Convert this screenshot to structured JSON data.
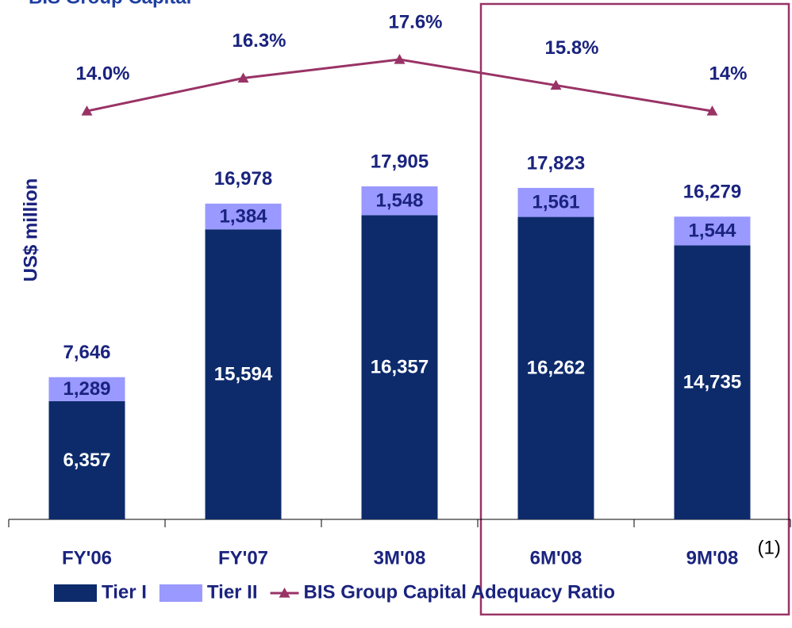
{
  "chart_data": {
    "type": "bar",
    "title": "BIS Group Capital",
    "y_label": "US$ million",
    "categories": [
      "FY'06",
      "FY'07",
      "3M'08",
      "6M'08",
      "9M'08"
    ],
    "category_note": {
      "index": 4,
      "text": "(1)"
    },
    "stacked": true,
    "ylim": [
      0,
      27500
    ],
    "y2lim": [
      -14.5,
      21.2
    ],
    "series": [
      {
        "name": "Tier I",
        "color": "#0d2b6b",
        "values": [
          6357,
          15594,
          16357,
          16262,
          14735
        ],
        "value_labels": [
          "6,357",
          "15,594",
          "16,357",
          "16,262",
          "14,735"
        ]
      },
      {
        "name": "Tier II",
        "color": "#9999ff",
        "values": [
          1289,
          1384,
          1548,
          1561,
          1544
        ],
        "value_labels": [
          "1,289",
          "1,384",
          "1,548",
          "1,561",
          "1,544"
        ]
      },
      {
        "name": "BIS Group Capital Adequacy Ratio",
        "type": "line",
        "axis": "y2",
        "color": "#993366",
        "values": [
          14.0,
          16.3,
          17.6,
          15.8,
          14
        ],
        "value_labels": [
          "14.0%",
          "16.3%",
          "17.6%",
          "15.8%",
          "14%"
        ]
      }
    ],
    "totals": {
      "values": [
        7646,
        16978,
        17905,
        17823,
        16279
      ],
      "value_labels": [
        "7,646",
        "16,978",
        "17,905",
        "17,823",
        "16,279"
      ]
    }
  }
}
